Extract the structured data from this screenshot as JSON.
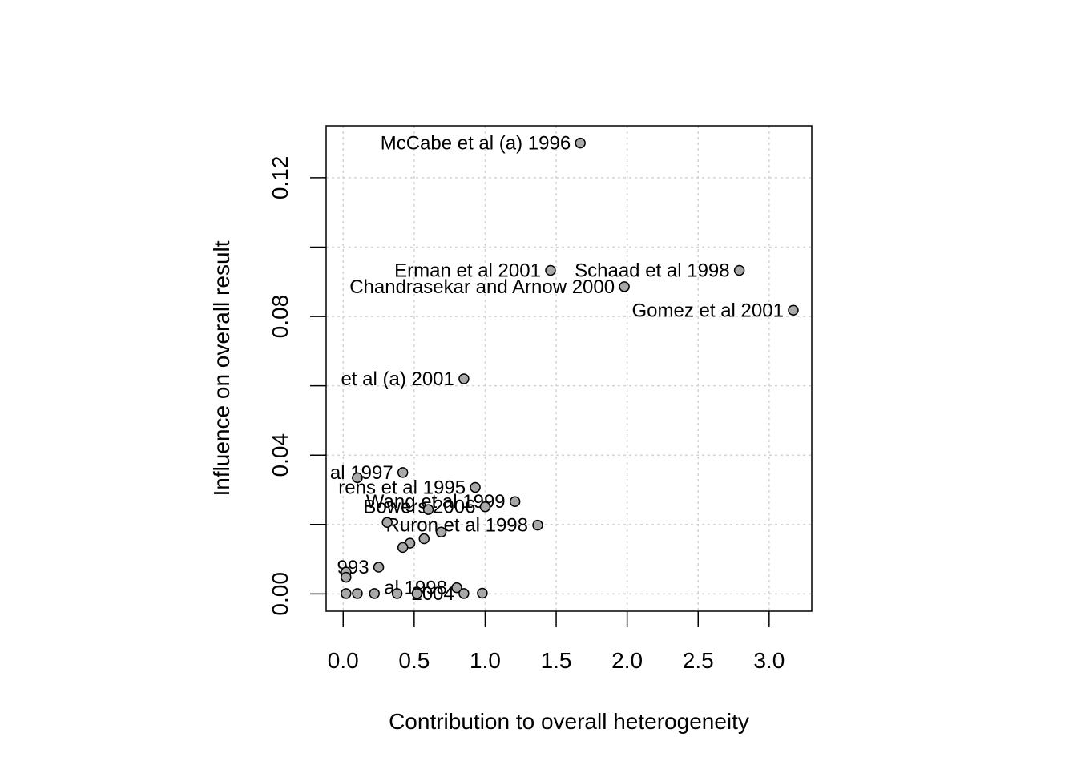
{
  "chart_data": {
    "type": "scatter",
    "title": "",
    "xlabel": "Contribution to overall heterogeneity",
    "ylabel": "Influence on overall result",
    "xlim": [
      -0.12,
      3.3
    ],
    "ylim": [
      -0.005,
      0.135
    ],
    "x_ticks": [
      0.0,
      0.5,
      1.0,
      1.5,
      2.0,
      2.5,
      3.0
    ],
    "x_tick_labels": [
      "0.0",
      "0.5",
      "1.0",
      "1.5",
      "2.0",
      "2.5",
      "3.0"
    ],
    "y_ticks": [
      0.0,
      0.02,
      0.04,
      0.06,
      0.08,
      0.1,
      0.12
    ],
    "y_tick_labels": [
      "0.00",
      "",
      "0.04",
      "",
      "0.08",
      "",
      "0.12"
    ],
    "grid": true,
    "point_color": "#a8a8a8",
    "points": [
      {
        "x": 1.67,
        "y": 0.13,
        "label": "McCabe et al (a) 1996"
      },
      {
        "x": 1.46,
        "y": 0.0933,
        "label": "Erman et al 2001"
      },
      {
        "x": 2.79,
        "y": 0.0933,
        "label": "Schaad et al 1998"
      },
      {
        "x": 1.98,
        "y": 0.0886,
        "label": "Chandrasekar and Arnow 2000"
      },
      {
        "x": 3.17,
        "y": 0.0818,
        "label": "Gomez et al 2001"
      },
      {
        "x": 0.85,
        "y": 0.062,
        "label": "et al (a) 2001"
      },
      {
        "x": 0.42,
        "y": 0.035,
        "label": "al 1997"
      },
      {
        "x": 0.1,
        "y": 0.0335,
        "label": ""
      },
      {
        "x": 0.93,
        "y": 0.0307,
        "label": "rens et al 1995"
      },
      {
        "x": 1.21,
        "y": 0.0266,
        "label": "Wang et al 1999"
      },
      {
        "x": 1.0,
        "y": 0.0251,
        "label": "Bowers 2006"
      },
      {
        "x": 0.6,
        "y": 0.0243,
        "label": ""
      },
      {
        "x": 1.37,
        "y": 0.0198,
        "label": "Ruron et al 1998"
      },
      {
        "x": 0.31,
        "y": 0.0206,
        "label": ""
      },
      {
        "x": 0.69,
        "y": 0.0178,
        "label": ""
      },
      {
        "x": 0.57,
        "y": 0.0159,
        "label": ""
      },
      {
        "x": 0.47,
        "y": 0.0146,
        "label": ""
      },
      {
        "x": 0.42,
        "y": 0.0134,
        "label": ""
      },
      {
        "x": 0.25,
        "y": 0.0077,
        "label": "993"
      },
      {
        "x": 0.02,
        "y": 0.0063,
        "label": ""
      },
      {
        "x": 0.02,
        "y": 0.0048,
        "label": ""
      },
      {
        "x": 0.8,
        "y": 0.0018,
        "label": "al 1998"
      },
      {
        "x": 0.98,
        "y": 0.0002,
        "label": ""
      },
      {
        "x": 0.85,
        "y": 0.0001,
        "label": "2004"
      },
      {
        "x": 0.52,
        "y": 0.0001,
        "label": ""
      },
      {
        "x": 0.38,
        "y": 0.0001,
        "label": ""
      },
      {
        "x": 0.22,
        "y": 0.0001,
        "label": ""
      },
      {
        "x": 0.1,
        "y": 0.0001,
        "label": ""
      },
      {
        "x": 0.02,
        "y": 0.0001,
        "label": ""
      }
    ]
  }
}
